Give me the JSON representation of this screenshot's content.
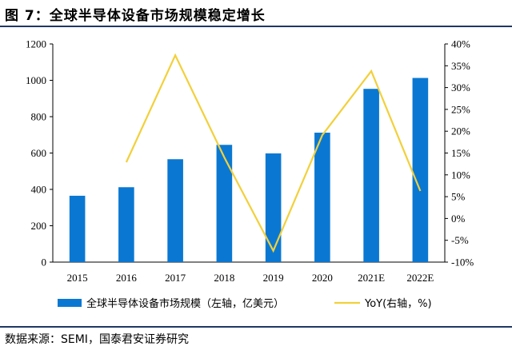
{
  "figure": {
    "title": "图 7：全球半导体设备市场规模稳定增长",
    "source": "数据来源：SEMI，国泰君安证券研究"
  },
  "chart_data": {
    "type": "bar",
    "categories": [
      "2015",
      "2016",
      "2017",
      "2018",
      "2019",
      "2020",
      "2021E",
      "2022E"
    ],
    "series": [
      {
        "name": "全球半导体设备市场规模（左轴，亿美元）",
        "type": "bar",
        "axis": "left",
        "values": [
          365,
          412,
          566,
          645,
          598,
          712,
          953,
          1013
        ],
        "color": "#0a78d2"
      },
      {
        "name": "YoY(右轴，%)",
        "type": "line",
        "axis": "right",
        "values": [
          null,
          12.9,
          37.4,
          14.0,
          -7.4,
          19.1,
          33.8,
          6.3
        ],
        "color": "#f2d03b"
      }
    ],
    "yleft": {
      "lim": [
        0,
        1200
      ],
      "ticks": [
        0,
        200,
        400,
        600,
        800,
        1000,
        1200
      ]
    },
    "yright": {
      "lim": [
        -10,
        40
      ],
      "ticks": [
        "-10%",
        "-5%",
        "0%",
        "5%",
        "10%",
        "15%",
        "20%",
        "25%",
        "30%",
        "35%",
        "40%"
      ]
    },
    "grid": false,
    "legend": "bottom"
  }
}
